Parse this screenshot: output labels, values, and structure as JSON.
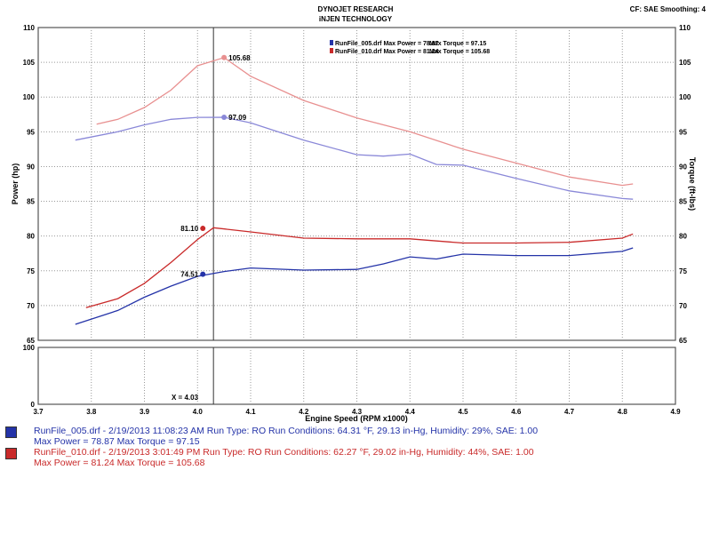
{
  "header": {
    "title1": "DYNOJET RESEARCH",
    "title2": "iNJEN TECHNOLOGY",
    "cf": "CF: SAE  Smoothing: 4"
  },
  "colors": {
    "blue": "#2433a8",
    "red": "#c92a2a",
    "blue_torque": "#8a88d8",
    "red_torque": "#e89090"
  },
  "legend": [
    {
      "file": "RunFile_005.drf Max Power = 78.87",
      "torque": "Max Torque = 97.15"
    },
    {
      "file": "RunFile_010.drf Max Power = 81.24",
      "torque": "Max Torque = 105.68"
    }
  ],
  "runs": [
    {
      "line1": "RunFile_005.drf - 2/19/2013 11:08:23 AM  Run Type: RO  Run Conditions: 64.31 °F, 29.13 in-Hg,  Humidity:  29%, SAE: 1.00",
      "line2": "Max Power = 78.87  Max Torque = 97.15"
    },
    {
      "line1": "RunFile_010.drf - 2/19/2013 3:01:49 PM  Run Type: RO  Run Conditions: 62.27 °F, 29.02 in-Hg,  Humidity:  44%, SAE: 1.00",
      "line2": "Max Power = 81.24  Max Torque = 105.68"
    }
  ],
  "chart_data": {
    "type": "line",
    "xlabel": "Engine Speed (RPM x1000)",
    "ylabel": "Power (hp)",
    "y2label": "Torque (ft-lbs)",
    "xlim": [
      3.7,
      4.9
    ],
    "ylim": [
      65,
      110
    ],
    "y2lim": [
      65,
      110
    ],
    "grid": true,
    "xticks": [
      "3.7",
      "3.8",
      "3.9",
      "4.0",
      "4.1",
      "4.2",
      "4.3",
      "4.4",
      "4.5",
      "4.6",
      "4.7",
      "4.8",
      "4.9"
    ],
    "yticks": [
      "65",
      "70",
      "75",
      "80",
      "85",
      "90",
      "95",
      "100",
      "105",
      "110"
    ],
    "lower_panel": {
      "ylim": [
        0,
        100
      ],
      "yticks": [
        "0",
        "100"
      ],
      "cursor_label": "X = 4.03"
    },
    "cursor_x": 4.03,
    "series": [
      {
        "name": "RunFile_005.drf Torque",
        "color": "#8a88d8",
        "x": [
          3.77,
          3.85,
          3.9,
          3.95,
          4.0,
          4.05,
          4.1,
          4.2,
          4.3,
          4.35,
          4.4,
          4.45,
          4.5,
          4.6,
          4.7,
          4.8,
          4.82
        ],
        "y": [
          93.8,
          95,
          96,
          96.8,
          97.08,
          97.09,
          96.3,
          93.8,
          91.7,
          91.5,
          91.8,
          90.3,
          90.2,
          88.3,
          86.5,
          85.4,
          85.3
        ]
      },
      {
        "name": "RunFile_010.drf Torque",
        "color": "#e89090",
        "x": [
          3.81,
          3.85,
          3.9,
          3.95,
          4.0,
          4.05,
          4.1,
          4.2,
          4.3,
          4.4,
          4.5,
          4.6,
          4.7,
          4.8,
          4.82
        ],
        "y": [
          96.1,
          96.8,
          98.5,
          101,
          104.5,
          105.68,
          103,
          99.5,
          97,
          95,
          92.5,
          90.5,
          88.5,
          87.3,
          87.5
        ]
      },
      {
        "name": "RunFile_005.drf Power",
        "color": "#2433a8",
        "x": [
          3.77,
          3.85,
          3.9,
          3.95,
          4.0,
          4.05,
          4.1,
          4.2,
          4.3,
          4.35,
          4.4,
          4.45,
          4.5,
          4.6,
          4.7,
          4.8,
          4.82
        ],
        "y": [
          67.3,
          69.3,
          71.2,
          72.8,
          74.2,
          74.9,
          75.4,
          75.1,
          75.2,
          76.0,
          77.0,
          76.7,
          77.4,
          77.2,
          77.2,
          77.8,
          78.3
        ]
      },
      {
        "name": "RunFile_010.drf Power",
        "color": "#c92a2a",
        "x": [
          3.79,
          3.85,
          3.9,
          3.95,
          4.0,
          4.03,
          4.1,
          4.2,
          4.3,
          4.4,
          4.5,
          4.6,
          4.7,
          4.8,
          4.82
        ],
        "y": [
          69.7,
          71,
          73.2,
          76.2,
          79.5,
          81.2,
          80.6,
          79.7,
          79.6,
          79.6,
          79.0,
          79.0,
          79.1,
          79.7,
          80.3
        ]
      }
    ],
    "annotations": [
      {
        "x": 4.05,
        "y": 105.68,
        "label": "105.68",
        "color": "#e89090",
        "side": "right"
      },
      {
        "x": 4.05,
        "y": 97.09,
        "label": "97.09",
        "color": "#8a88d8",
        "side": "right"
      },
      {
        "x": 4.01,
        "y": 81.1,
        "label": "81.10",
        "color": "#c92a2a",
        "side": "left"
      },
      {
        "x": 4.01,
        "y": 74.51,
        "label": "74.51",
        "color": "#2433a8",
        "side": "left"
      }
    ]
  }
}
